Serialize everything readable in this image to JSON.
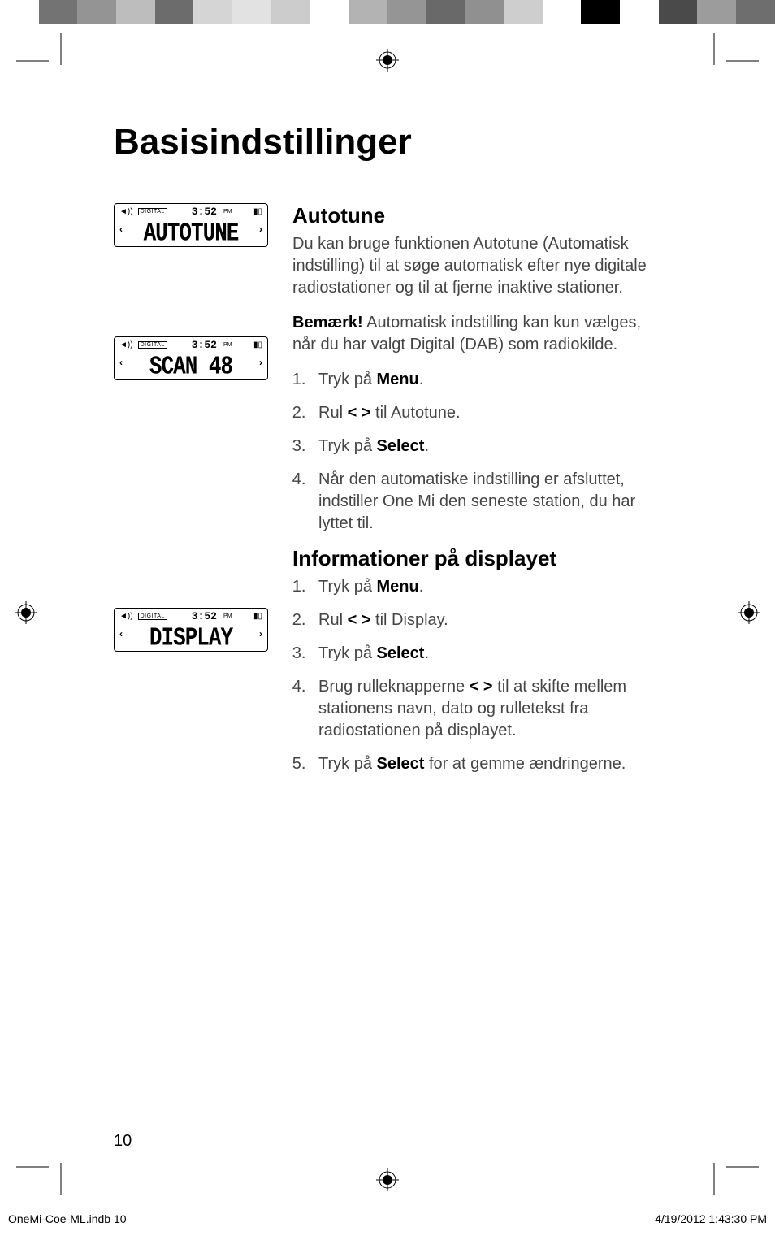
{
  "top_bar_colors": [
    "#ffffff",
    "#737373",
    "#949494",
    "#bdbdbd",
    "#6c6c6c",
    "#d5d5d5",
    "#e2e2e2",
    "#cccccc",
    "#ffffff",
    "#b3b3b3",
    "#959595",
    "#696969",
    "#909090",
    "#cecece",
    "#ffffff",
    "#000000",
    "#ffffff",
    "#4a4a4a",
    "#9c9c9c",
    "#6e6e6e"
  ],
  "main_title": "Basisindstillinger",
  "lcd": {
    "digital_label": "DIGITAL",
    "time": "3:52",
    "ampm": "PM",
    "screens": [
      {
        "main": "AUTOTUNE"
      },
      {
        "main": "SCAN  48"
      },
      {
        "main": "DISPLAY"
      }
    ]
  },
  "section1": {
    "title": "Autotune",
    "intro": "Du kan bruge funktionen Autotune (Automatisk indstilling) til at søge automatisk efter nye digitale radiostationer og til at fjerne inaktive stationer.",
    "note_label": "Bemærk!",
    "note_text": " Automatisk indstilling kan kun vælges, når du har valgt Digital (DAB) som radiokilde.",
    "steps": {
      "s1_pre": "Tryk på ",
      "s1_bold": "Menu",
      "s1_post": ".",
      "s2_pre": "Rul ",
      "s2_bold": "< >",
      "s2_post": " til Autotune.",
      "s3_pre": "Tryk på ",
      "s3_bold": "Select",
      "s3_post": ".",
      "s4": "Når den automatiske indstilling er afsluttet, indstiller One Mi den seneste station, du har lyttet til."
    }
  },
  "section2": {
    "title": "Informationer på displayet",
    "steps": {
      "s1_pre": "Tryk på ",
      "s1_bold": "Menu",
      "s1_post": ".",
      "s2_pre": "Rul ",
      "s2_bold": "< >",
      "s2_post": " til Display.",
      "s3_pre": "Tryk på ",
      "s3_bold": "Select",
      "s3_post": ".",
      "s4_pre": "Brug rulleknapperne ",
      "s4_bold": "< >",
      "s4_post": " til at skifte mellem stationens navn, dato og rulletekst fra radiostationen på displayet.",
      "s5_pre": "Tryk på ",
      "s5_bold": "Select",
      "s5_post": " for at gemme ændringerne."
    }
  },
  "page_number": "10",
  "footer": {
    "left": "OneMi-Coe-ML.indb   10",
    "right": "4/19/2012   1:43:30 PM"
  }
}
